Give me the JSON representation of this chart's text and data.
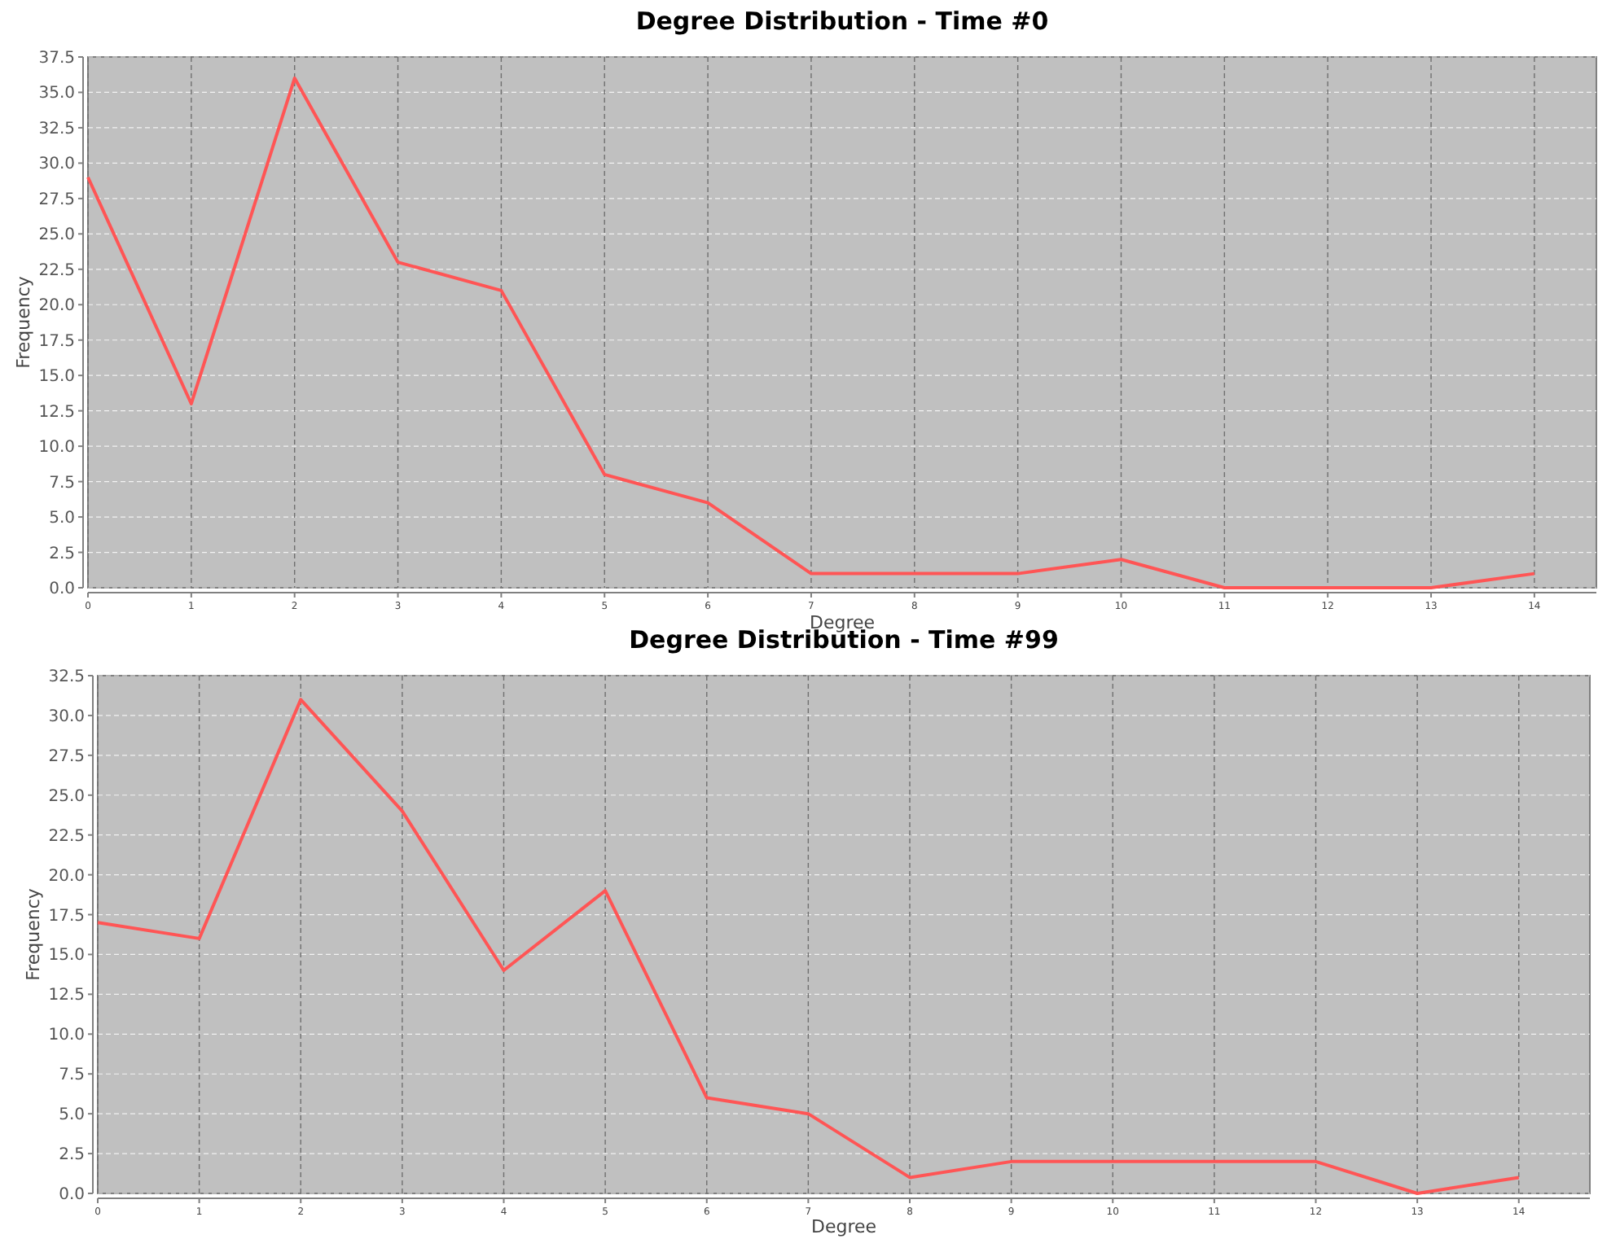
{
  "chart_data": [
    {
      "type": "line",
      "title": "Degree Distribution - Time #0",
      "xlabel": "Degree",
      "ylabel": "Frequency",
      "x": [
        0,
        1,
        2,
        3,
        4,
        5,
        6,
        7,
        8,
        9,
        10,
        11,
        12,
        13,
        14
      ],
      "series": [
        {
          "color": "#ff5555",
          "values": [
            29,
            13,
            36,
            23,
            21,
            8,
            6,
            1,
            1,
            1,
            2,
            0,
            0,
            0,
            1
          ]
        }
      ],
      "xlim": [
        0,
        14.6
      ],
      "xticks": [
        0,
        1,
        2,
        3,
        4,
        5,
        6,
        7,
        8,
        9,
        10,
        11,
        12,
        13,
        14
      ],
      "ylim": [
        0,
        37.5
      ],
      "yticks": [
        {
          "value": 0,
          "label": "0.0"
        },
        {
          "value": 2.5,
          "label": "2.5"
        },
        {
          "value": 5,
          "label": "5.0"
        },
        {
          "value": 7.5,
          "label": "7.5"
        },
        {
          "value": 10,
          "label": "10.0"
        },
        {
          "value": 12.5,
          "label": "12.5"
        },
        {
          "value": 15,
          "label": "15.0"
        },
        {
          "value": 17.5,
          "label": "17.5"
        },
        {
          "value": 20,
          "label": "20.0"
        },
        {
          "value": 22.5,
          "label": "22.5"
        },
        {
          "value": 25,
          "label": "25.0"
        },
        {
          "value": 27.5,
          "label": "27.5"
        },
        {
          "value": 30,
          "label": "30.0"
        },
        {
          "value": 32.5,
          "label": "32.5"
        },
        {
          "value": 35,
          "label": "35.0"
        },
        {
          "value": 37.5,
          "label": "37.5"
        }
      ],
      "grid": true,
      "marker": "none",
      "line_style": "solid"
    },
    {
      "type": "line",
      "title": "Degree Distribution - Time #99",
      "xlabel": "Degree",
      "ylabel": "Frequency",
      "x": [
        0,
        1,
        2,
        3,
        4,
        5,
        6,
        7,
        8,
        9,
        10,
        11,
        12,
        13,
        14
      ],
      "series": [
        {
          "color": "#ff5555",
          "values": [
            17,
            16,
            31,
            24,
            14,
            19,
            6,
            5,
            1,
            2,
            2,
            2,
            2,
            0,
            1
          ]
        }
      ],
      "xlim": [
        0,
        14.7
      ],
      "xticks": [
        0,
        1,
        2,
        3,
        4,
        5,
        6,
        7,
        8,
        9,
        10,
        11,
        12,
        13,
        14
      ],
      "ylim": [
        0,
        32.5
      ],
      "yticks": [
        {
          "value": 0,
          "label": "0.0"
        },
        {
          "value": 2.5,
          "label": "2.5"
        },
        {
          "value": 5,
          "label": "5.0"
        },
        {
          "value": 7.5,
          "label": "7.5"
        },
        {
          "value": 10,
          "label": "10.0"
        },
        {
          "value": 12.5,
          "label": "12.5"
        },
        {
          "value": 15,
          "label": "15.0"
        },
        {
          "value": 17.5,
          "label": "17.5"
        },
        {
          "value": 20,
          "label": "20.0"
        },
        {
          "value": 22.5,
          "label": "22.5"
        },
        {
          "value": 25,
          "label": "25.0"
        },
        {
          "value": 27.5,
          "label": "27.5"
        },
        {
          "value": 30,
          "label": "30.0"
        },
        {
          "value": 32.5,
          "label": "32.5"
        }
      ],
      "grid": true,
      "marker": "none",
      "line_style": "solid"
    }
  ]
}
